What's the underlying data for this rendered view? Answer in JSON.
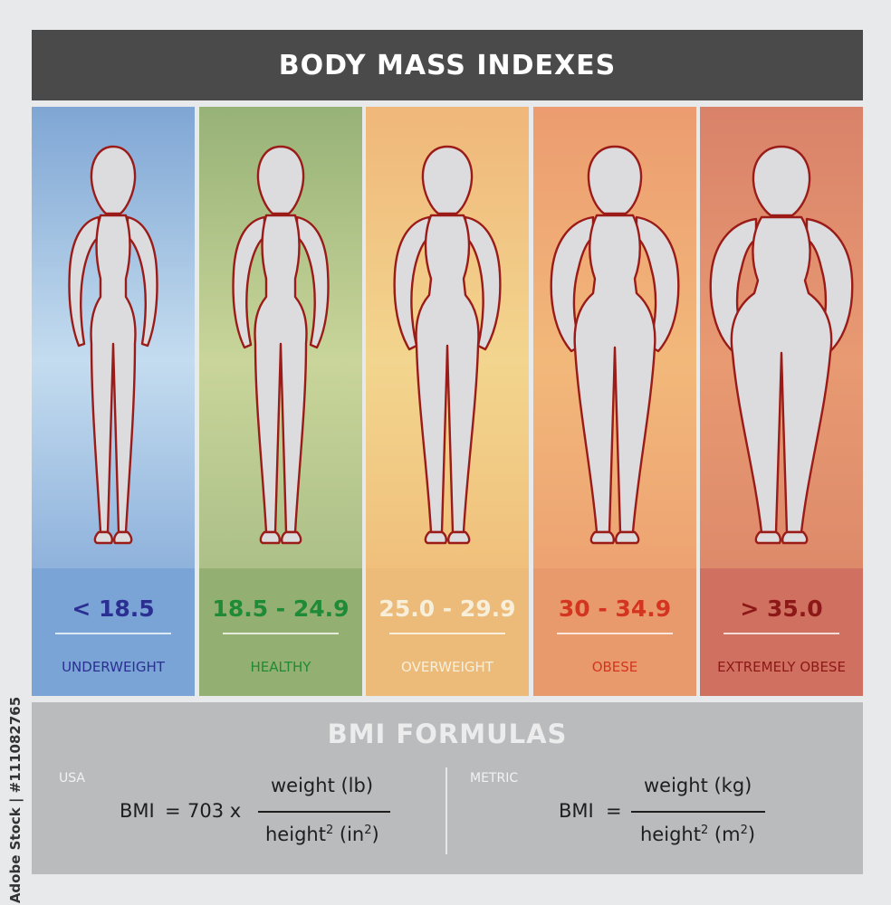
{
  "title": "BODY MASS INDEXES",
  "side_credit": "Adobe Stock | #111082765",
  "categories": [
    {
      "range": "< 18.5",
      "label": "UNDERWEIGHT",
      "text_color": "#2b2f92",
      "top": "#7fa6d4",
      "mid": "#c4dcef",
      "bottom": "#8fb2dc",
      "band": "#7aa3d6"
    },
    {
      "range": "18.5 - 24.9",
      "label": "HEALTHY",
      "text_color": "#1f8a37",
      "top": "#97b277",
      "mid": "#c9d59a",
      "bottom": "#acc088",
      "band": "#93b072"
    },
    {
      "range": "25.0 - 29.9",
      "label": "OVERWEIGHT",
      "text_color": "#f7efd9",
      "top": "#f0b77a",
      "mid": "#f2d58e",
      "bottom": "#f0c07b",
      "band": "#ecbb7a"
    },
    {
      "range": "30 - 34.9",
      "label": "OBESE",
      "text_color": "#d43520",
      "top": "#ec9c70",
      "mid": "#f2b87a",
      "bottom": "#eda372",
      "band": "#e99a6c"
    },
    {
      "range": "> 35.0",
      "label": "EXTREMELY OBESE",
      "text_color": "#8d1818",
      "top": "#d9826a",
      "mid": "#e89a72",
      "bottom": "#dd8a6a",
      "band": "#d07060"
    }
  ],
  "formulas": {
    "title": "BMI FORMULAS",
    "usa": {
      "region": "USA",
      "lhs": "BMI",
      "equals": "=",
      "factor": "703 x",
      "numerator": "weight (lb)",
      "denominator_base": "height",
      "denominator_exp": "2",
      "denominator_unit_open": "(in",
      "denominator_unit_exp": "2",
      "denominator_unit_close": ")"
    },
    "metric": {
      "region": "METRIC",
      "lhs": "BMI",
      "equals": "=",
      "numerator": "weight (kg)",
      "denominator_base": "height",
      "denominator_exp": "2",
      "denominator_unit_open": "(m",
      "denominator_unit_exp": "2",
      "denominator_unit_close": ")"
    }
  },
  "colors": {
    "title_bar": "#4a4a4a",
    "formula_panel": "#b9bbbd",
    "body_fill": "#dcdcdf",
    "body_outline": "#9a1b17"
  }
}
